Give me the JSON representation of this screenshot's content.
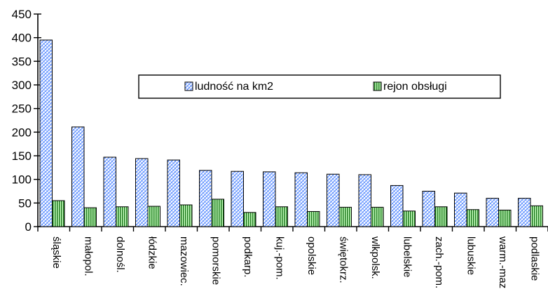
{
  "chart_data": {
    "type": "bar",
    "categories": [
      "śląskie",
      "małopol.",
      "dolnośl.",
      "łódzkie",
      "mazowiec.",
      "pomorskie",
      "podkarp.",
      "kuj.-pom.",
      "opolskie",
      "świętokrz.",
      "wlkpolsk.",
      "lubelskie",
      "zach.-pom.",
      "lubuskie",
      "warm.-maz",
      "podlaskie"
    ],
    "series": [
      {
        "name": "ludność na km2",
        "values": [
          395,
          211,
          147,
          144,
          141,
          119,
          117,
          116,
          114,
          111,
          110,
          87,
          75,
          71,
          60,
          60
        ],
        "color": "#6fa0ff"
      },
      {
        "name": "rejon obsługi",
        "values": [
          55,
          40,
          42,
          43,
          46,
          58,
          30,
          42,
          32,
          41,
          41,
          33,
          42,
          36,
          35,
          44
        ],
        "color": "#2e8b2e"
      }
    ],
    "yticks": [
      0,
      50,
      100,
      150,
      200,
      250,
      300,
      350,
      400,
      450
    ],
    "ylim": [
      0,
      450
    ],
    "legend_position": "upper-center",
    "grid": false
  }
}
